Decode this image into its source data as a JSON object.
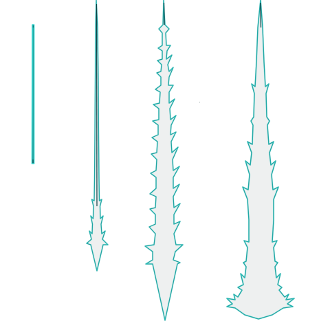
{
  "scene": {
    "description_label": "",
    "colors": {
      "background": "#ffffff",
      "fill": "#f0f0f0",
      "outline_outer": "#2fd4cc",
      "outline_inner": "#0b6f73",
      "dark_core": "#0f3f44"
    },
    "sprites": [
      {
        "name": "spike-stage-1",
        "icon": "thin-needle-icon"
      },
      {
        "name": "spike-stage-2",
        "icon": "arrow-needle-icon"
      },
      {
        "name": "spike-stage-3",
        "icon": "thorned-arrow-icon"
      },
      {
        "name": "spike-stage-4",
        "icon": "ice-pillar-icon"
      }
    ]
  }
}
